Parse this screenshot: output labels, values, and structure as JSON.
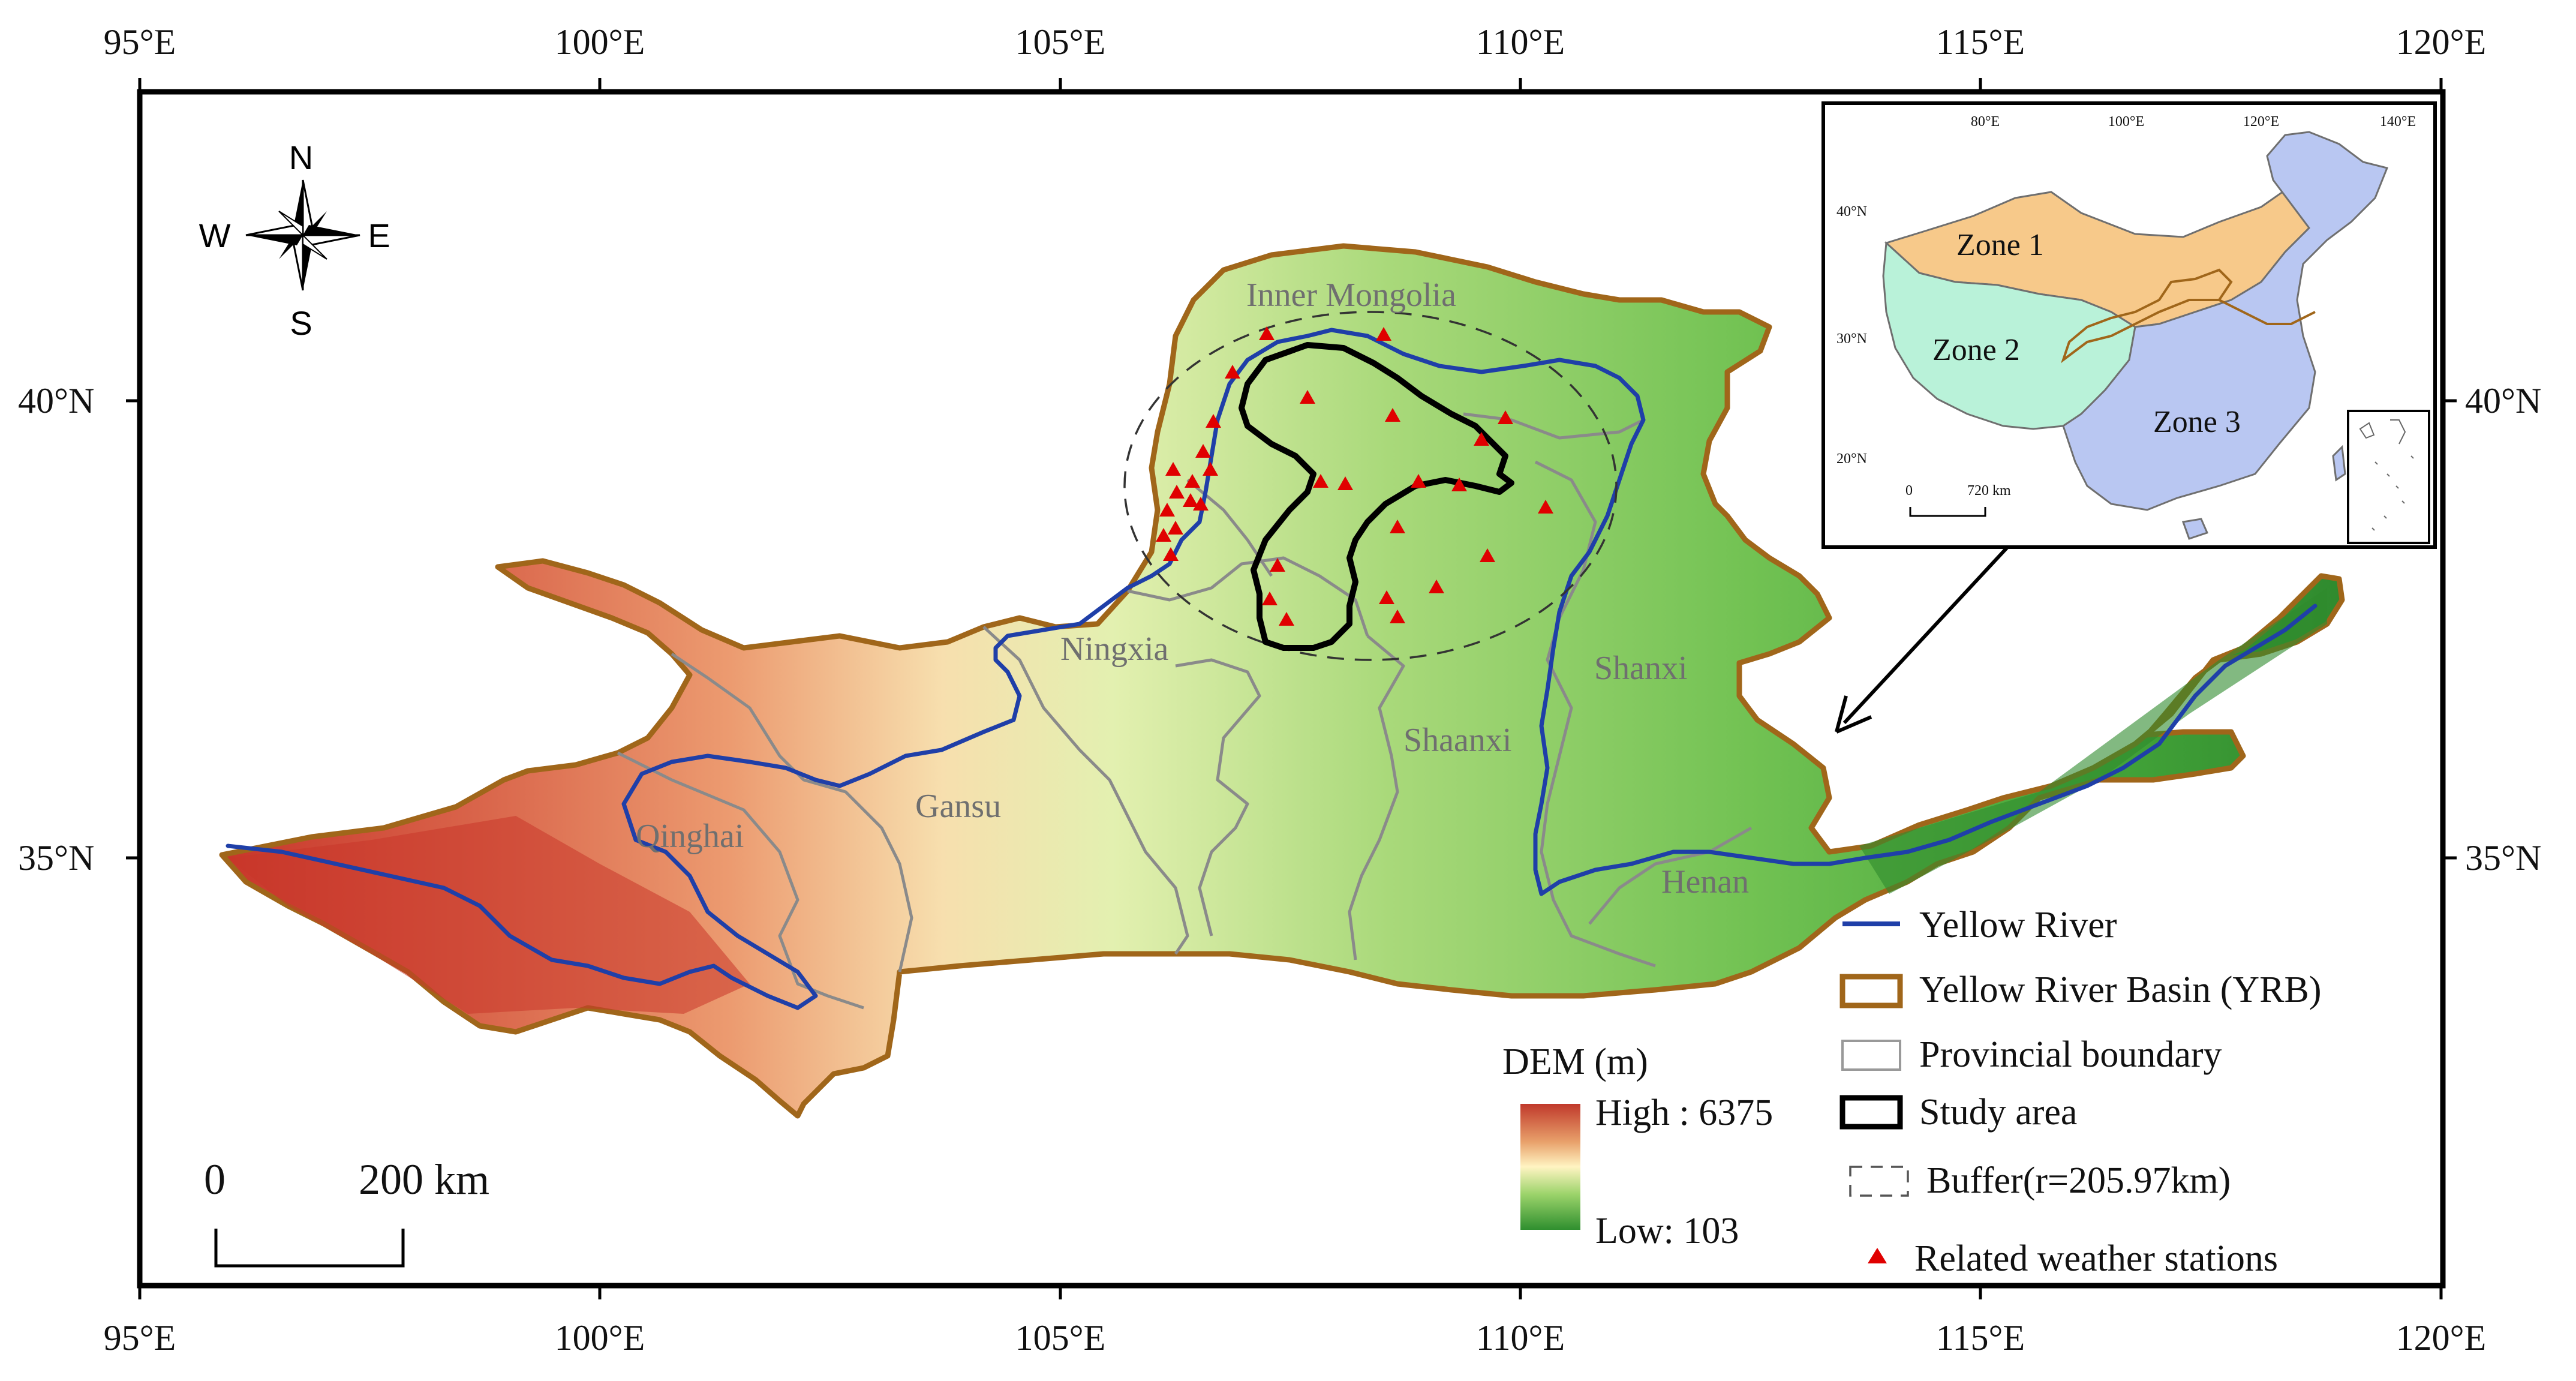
{
  "map": {
    "lon_ticks": [
      "95°E",
      "100°E",
      "105°E",
      "110°E",
      "115°E",
      "120°E"
    ],
    "lat_ticks": [
      "40°N",
      "35°N"
    ],
    "north_arrow": {
      "n": "N",
      "s": "S",
      "w": "W",
      "e": "E"
    },
    "provinces": [
      "Inner Mongolia",
      "Ningxia",
      "Shanxi",
      "Shaanxi",
      "Gansu",
      "Qinghai",
      "Henan"
    ],
    "scale_bar": {
      "zero": "0",
      "distance": "200 km"
    },
    "dem_legend": {
      "title": "DEM (m)",
      "high": "High : 6375",
      "low": "Low: 103",
      "colors": [
        "#c0392b",
        "#e8a06a",
        "#fff4c2",
        "#9bd36a",
        "#2f8f2f"
      ]
    },
    "legend": [
      {
        "label": "Yellow River",
        "color": "#1f3fa8"
      },
      {
        "label": "Yellow River Basin (YRB)",
        "color": "#a0661a"
      },
      {
        "label": "Provincial boundary",
        "color": "#999999"
      },
      {
        "label": "Study area",
        "color": "#000000"
      },
      {
        "label": "Buffer(r=205.97km)",
        "color": "#555555"
      },
      {
        "label": "Related weather stations",
        "color": "#e00000"
      }
    ],
    "inset": {
      "lon_ticks": [
        "80°E",
        "100°E",
        "120°E",
        "140°E"
      ],
      "lat_ticks": [
        "40°N",
        "30°N",
        "20°N"
      ],
      "zones": [
        {
          "label": "Zone 1",
          "color": "#f7c98a"
        },
        {
          "label": "Zone 2",
          "color": "#b9f2d9"
        },
        {
          "label": "Zone 3",
          "color": "#b9c7f2"
        }
      ],
      "scale": {
        "zero": "0",
        "distance": "720 km"
      }
    }
  }
}
